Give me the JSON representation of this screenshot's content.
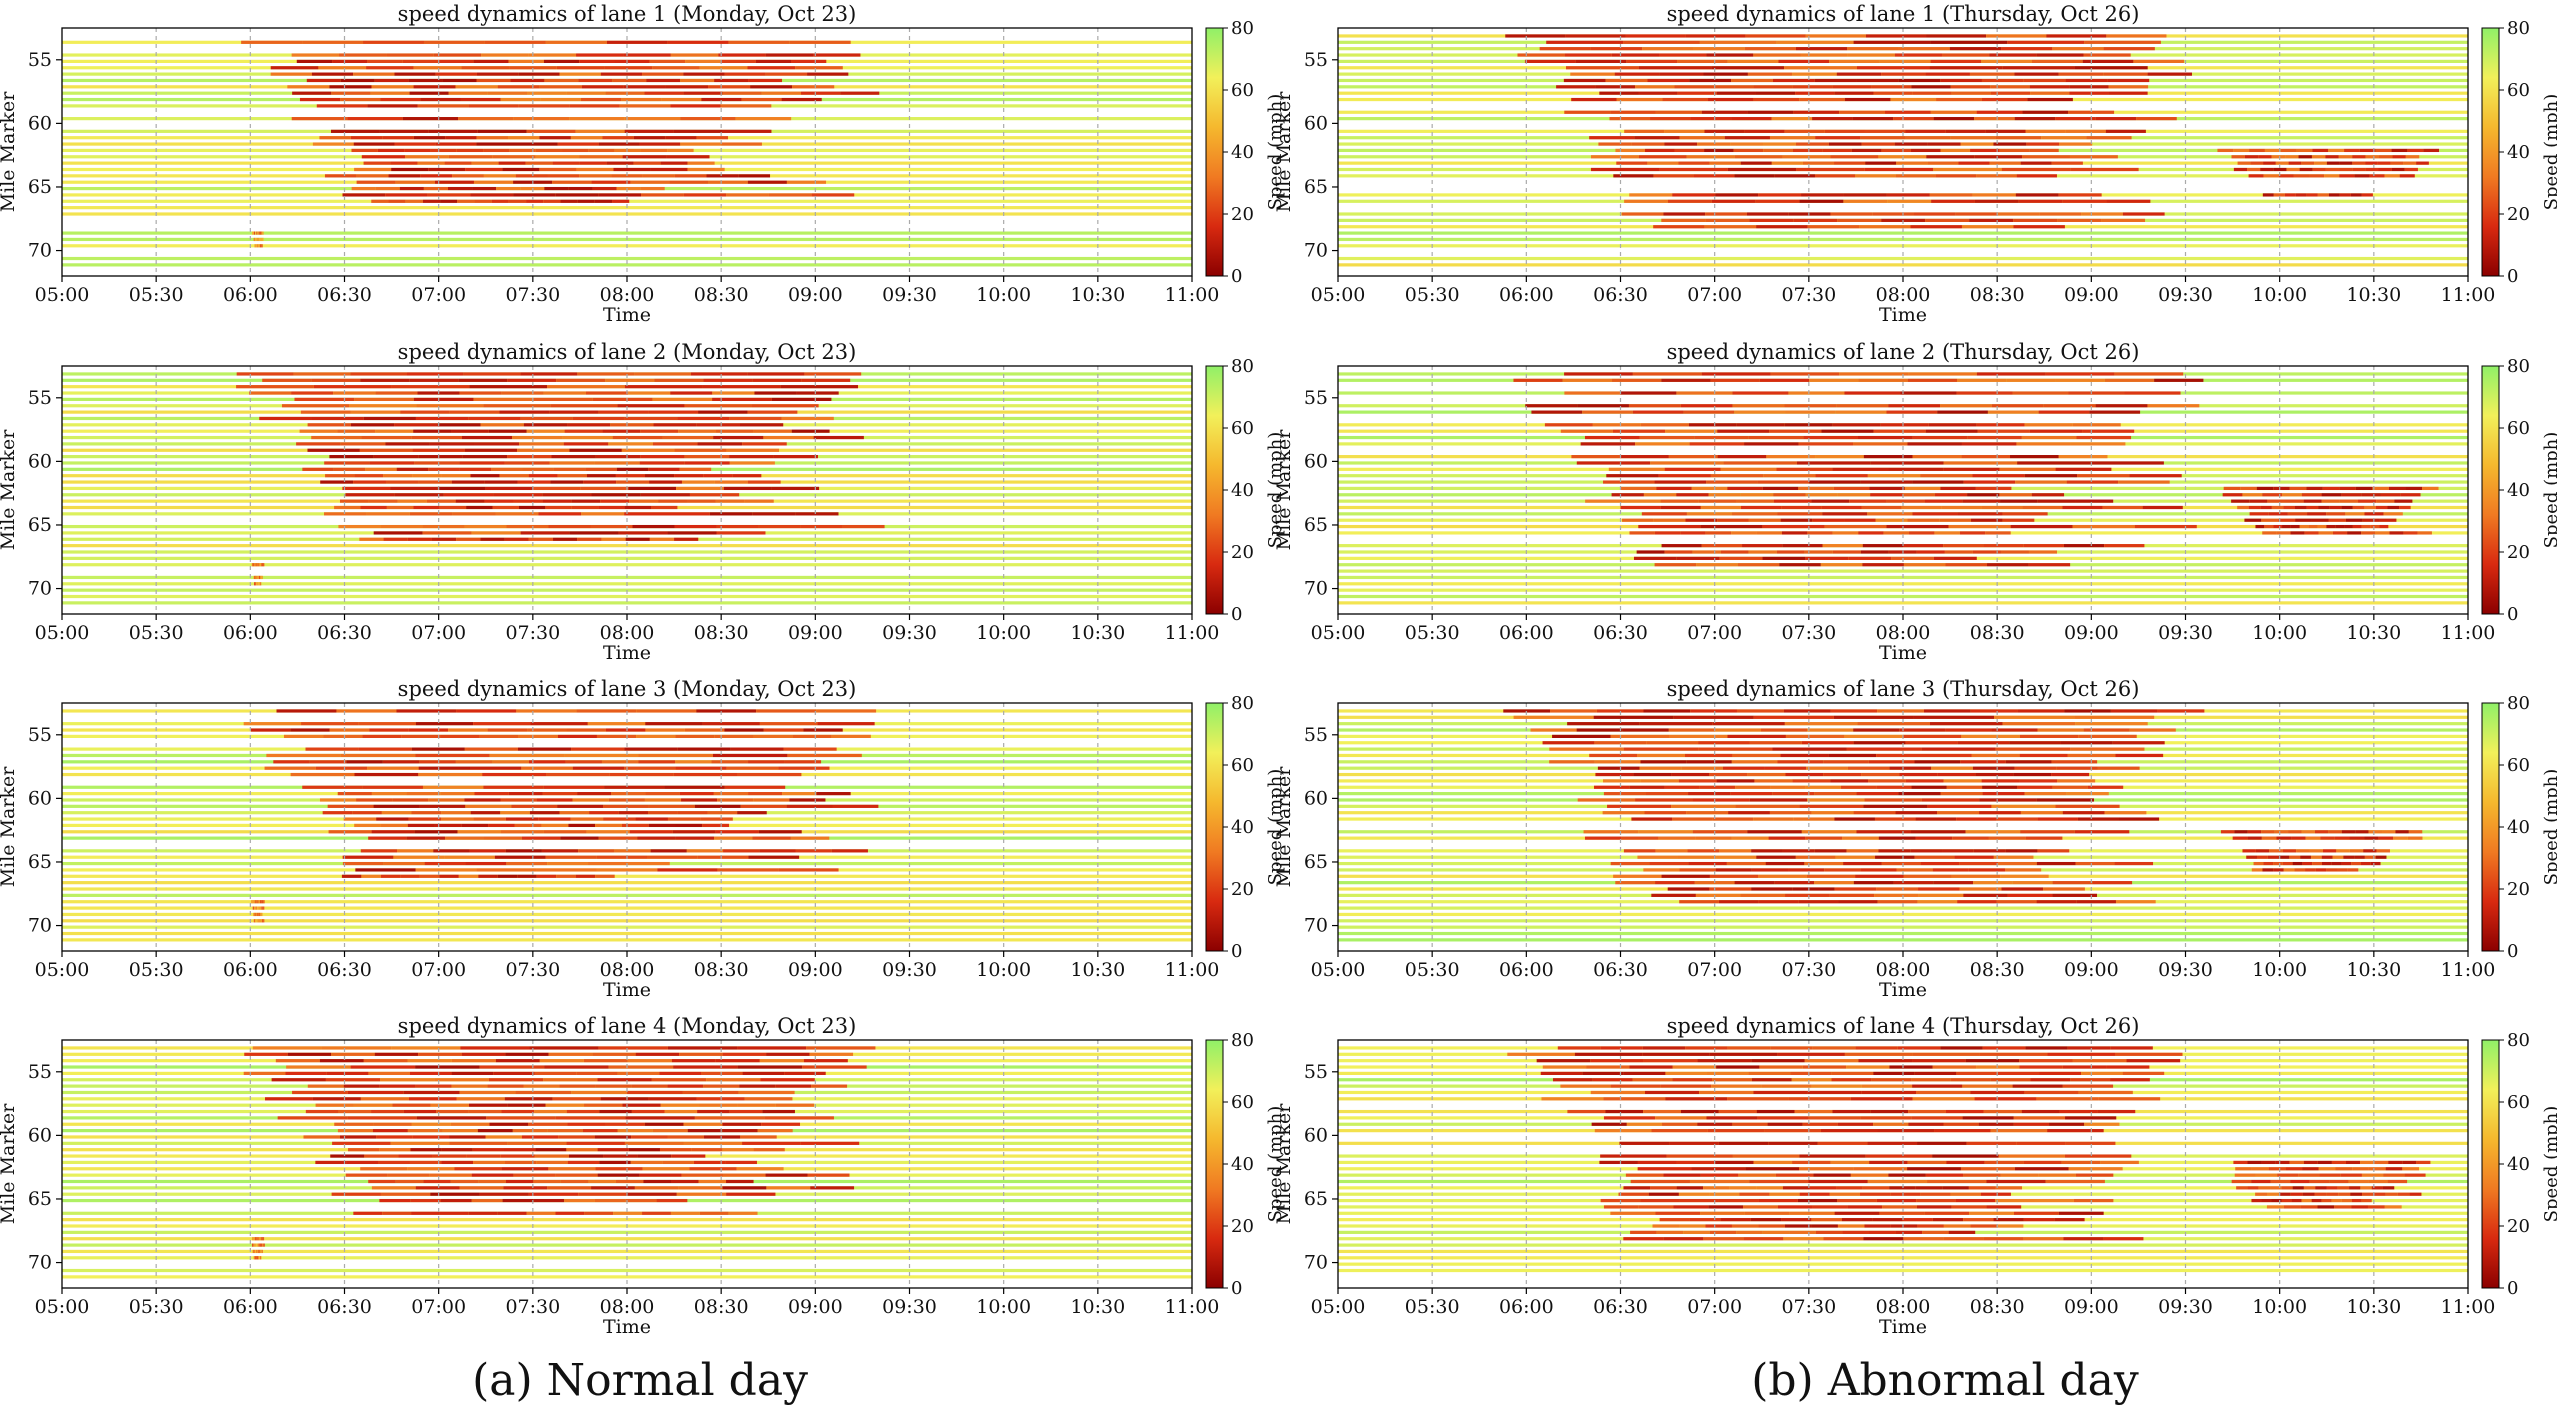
{
  "chart_data": [
    {
      "type": "heatmap",
      "title": "speed dynamics of lane 1 (Monday, Oct 23)",
      "lane": 1,
      "day": "normal",
      "xlabel": "Time",
      "ylabel": "Mile Marker",
      "colorbar_label": "Speed (mph)",
      "x_range": [
        "05:00",
        "11:00"
      ],
      "ylim": [
        72,
        52.5
      ],
      "clim": [
        0,
        80
      ],
      "congestion_zones": [
        {
          "start": "05:40",
          "end": "09:35",
          "mile_top": 53,
          "mile_bottom": 66,
          "min_speed": 5
        },
        {
          "start": "06:00",
          "end": "06:05",
          "mile_top": 68,
          "mile_bottom": 69.5,
          "min_speed": 20
        }
      ]
    },
    {
      "type": "heatmap",
      "title": "speed dynamics of lane 2 (Monday, Oct 23)",
      "lane": 2,
      "day": "normal",
      "xlabel": "Time",
      "ylabel": "Mile Marker",
      "colorbar_label": "Speed (mph)",
      "x_range": [
        "05:00",
        "11:00"
      ],
      "ylim": [
        72,
        52.5
      ],
      "clim": [
        0,
        80
      ],
      "congestion_zones": [
        {
          "start": "05:40",
          "end": "09:35",
          "mile_top": 53,
          "mile_bottom": 66,
          "min_speed": 5
        },
        {
          "start": "06:00",
          "end": "06:05",
          "mile_top": 68,
          "mile_bottom": 69.5,
          "min_speed": 20
        }
      ]
    },
    {
      "type": "heatmap",
      "title": "speed dynamics of lane 3 (Monday, Oct 23)",
      "lane": 3,
      "day": "normal",
      "xlabel": "Time",
      "ylabel": "Mile Marker",
      "colorbar_label": "Speed (mph)",
      "x_range": [
        "05:00",
        "11:00"
      ],
      "ylim": [
        72,
        52.5
      ],
      "clim": [
        0,
        80
      ],
      "congestion_zones": [
        {
          "start": "05:40",
          "end": "09:35",
          "mile_top": 53,
          "mile_bottom": 66,
          "min_speed": 5
        },
        {
          "start": "06:00",
          "end": "06:05",
          "mile_top": 68,
          "mile_bottom": 69.5,
          "min_speed": 20
        }
      ]
    },
    {
      "type": "heatmap",
      "title": "speed dynamics of lane 4 (Monday, Oct 23)",
      "lane": 4,
      "day": "normal",
      "xlabel": "Time",
      "ylabel": "Mile Marker",
      "colorbar_label": "Speed (mph)",
      "x_range": [
        "05:00",
        "11:00"
      ],
      "ylim": [
        72,
        52.5
      ],
      "clim": [
        0,
        80
      ],
      "congestion_zones": [
        {
          "start": "05:40",
          "end": "09:35",
          "mile_top": 53,
          "mile_bottom": 66,
          "min_speed": 5
        },
        {
          "start": "06:00",
          "end": "06:05",
          "mile_top": 68,
          "mile_bottom": 69.5,
          "min_speed": 20
        }
      ]
    },
    {
      "type": "heatmap",
      "title": "speed dynamics of lane 1 (Thursday, Oct 26)",
      "lane": 1,
      "day": "abnormal",
      "xlabel": "Time",
      "ylabel": "Mile Marker",
      "colorbar_label": "Speed (mph)",
      "x_range": [
        "05:00",
        "11:00"
      ],
      "ylim": [
        72,
        52.5
      ],
      "clim": [
        0,
        80
      ],
      "congestion_zones": [
        {
          "start": "05:40",
          "end": "09:50",
          "mile_top": 53,
          "mile_bottom": 68,
          "min_speed": 5
        },
        {
          "start": "09:35",
          "end": "10:55",
          "mile_top": 62,
          "mile_bottom": 65.5,
          "min_speed": 5
        }
      ]
    },
    {
      "type": "heatmap",
      "title": "speed dynamics of lane 2 (Thursday, Oct 26)",
      "lane": 2,
      "day": "abnormal",
      "xlabel": "Time",
      "ylabel": "Mile Marker",
      "colorbar_label": "Speed (mph)",
      "x_range": [
        "05:00",
        "11:00"
      ],
      "ylim": [
        72,
        52.5
      ],
      "clim": [
        0,
        80
      ],
      "congestion_zones": [
        {
          "start": "05:40",
          "end": "09:50",
          "mile_top": 53,
          "mile_bottom": 68,
          "min_speed": 5
        },
        {
          "start": "09:35",
          "end": "10:55",
          "mile_top": 62,
          "mile_bottom": 65.5,
          "min_speed": 5
        }
      ]
    },
    {
      "type": "heatmap",
      "title": "speed dynamics of lane 3 (Thursday, Oct 26)",
      "lane": 3,
      "day": "abnormal",
      "xlabel": "Time",
      "ylabel": "Mile Marker",
      "colorbar_label": "Speed (mph)",
      "x_range": [
        "05:00",
        "11:00"
      ],
      "ylim": [
        72,
        52.5
      ],
      "clim": [
        0,
        80
      ],
      "congestion_zones": [
        {
          "start": "05:40",
          "end": "09:50",
          "mile_top": 53,
          "mile_bottom": 68,
          "min_speed": 5
        },
        {
          "start": "09:35",
          "end": "10:55",
          "mile_top": 62,
          "mile_bottom": 65.5,
          "min_speed": 5
        }
      ]
    },
    {
      "type": "heatmap",
      "title": "speed dynamics of lane 4 (Thursday, Oct 26)",
      "lane": 4,
      "day": "abnormal",
      "xlabel": "Time",
      "ylabel": "Mile Marker",
      "colorbar_label": "Speed (mph)",
      "x_range": [
        "05:00",
        "11:00"
      ],
      "ylim": [
        72,
        52.5
      ],
      "clim": [
        0,
        80
      ],
      "congestion_zones": [
        {
          "start": "05:40",
          "end": "09:50",
          "mile_top": 53,
          "mile_bottom": 68,
          "min_speed": 5
        },
        {
          "start": "09:35",
          "end": "10:55",
          "mile_top": 62,
          "mile_bottom": 65.5,
          "min_speed": 5
        }
      ]
    }
  ],
  "axes": {
    "x_ticks": [
      "05:00",
      "05:30",
      "06:00",
      "06:30",
      "07:00",
      "07:30",
      "08:00",
      "08:30",
      "09:00",
      "09:30",
      "10:00",
      "10:30",
      "11:00"
    ],
    "y_ticks": [
      55,
      60,
      65,
      70
    ],
    "colorbar_ticks": [
      0,
      20,
      40,
      60,
      80
    ]
  },
  "colors": {
    "colormap": [
      "#8b0000",
      "#d82a10",
      "#f07a22",
      "#f5b82e",
      "#f2f05a",
      "#90f068"
    ],
    "grid": "#aaaaaa"
  },
  "captions": {
    "left": "(a) Normal day",
    "right": "(b) Abnormal day"
  }
}
